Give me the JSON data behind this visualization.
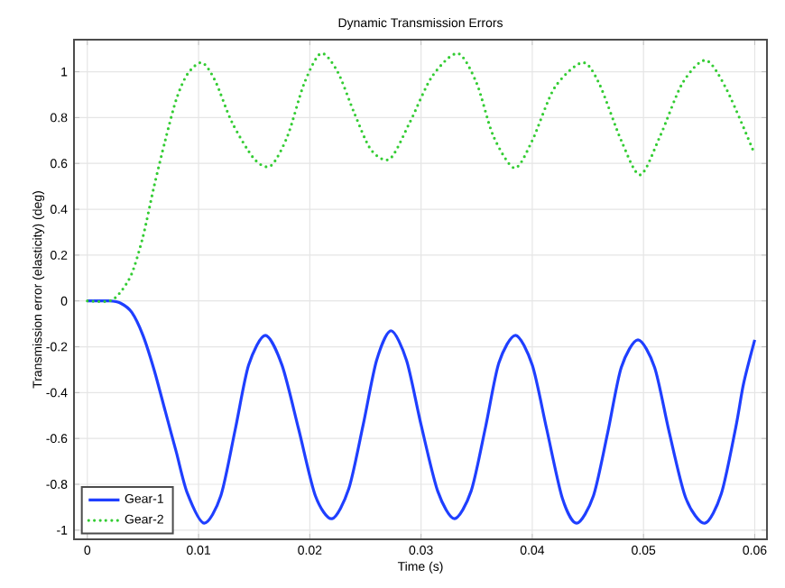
{
  "chart_data": {
    "type": "line",
    "title": "Dynamic Transmission Errors",
    "xlabel": "Time (s)",
    "ylabel": "Transmission error (elasticity) (deg)",
    "xlim": [
      -0.0012,
      0.0611
    ],
    "ylim": [
      -1.04,
      1.14
    ],
    "xticks": [
      0,
      0.01,
      0.02,
      0.03,
      0.04,
      0.05,
      0.06
    ],
    "yticks": [
      -1,
      -0.8,
      -0.6,
      -0.4,
      -0.2,
      0,
      0.2,
      0.4,
      0.6,
      0.8,
      1
    ],
    "grid": true,
    "legend": "bottom left",
    "marker": "none",
    "series": [
      {
        "name": "Gear-1",
        "color": "#1f3fff",
        "line_style": "solid",
        "x": [
          0,
          0.002,
          0.003,
          0.004,
          0.005,
          0.006,
          0.007,
          0.008,
          0.009,
          0.0105,
          0.012,
          0.0133,
          0.0145,
          0.016,
          0.0175,
          0.019,
          0.0205,
          0.022,
          0.0235,
          0.0248,
          0.026,
          0.0273,
          0.0287,
          0.03,
          0.0315,
          0.033,
          0.0345,
          0.0358,
          0.037,
          0.0385,
          0.04,
          0.0413,
          0.0427,
          0.044,
          0.0455,
          0.0468,
          0.048,
          0.0495,
          0.051,
          0.0523,
          0.0538,
          0.0555,
          0.057,
          0.0583,
          0.059,
          0.06
        ],
        "values": [
          0,
          0,
          -0.01,
          -0.05,
          -0.15,
          -0.3,
          -0.48,
          -0.66,
          -0.84,
          -0.97,
          -0.85,
          -0.56,
          -0.28,
          -0.15,
          -0.28,
          -0.56,
          -0.85,
          -0.95,
          -0.82,
          -0.54,
          -0.26,
          -0.13,
          -0.26,
          -0.54,
          -0.83,
          -0.95,
          -0.83,
          -0.55,
          -0.27,
          -0.15,
          -0.28,
          -0.56,
          -0.86,
          -0.97,
          -0.85,
          -0.57,
          -0.29,
          -0.17,
          -0.29,
          -0.57,
          -0.86,
          -0.97,
          -0.84,
          -0.55,
          -0.36,
          -0.17
        ]
      },
      {
        "name": "Gear-2",
        "color": "#33cc33",
        "line_style": "dotted",
        "x": [
          0,
          0.002,
          0.003,
          0.004,
          0.005,
          0.006,
          0.007,
          0.008,
          0.009,
          0.0103,
          0.0115,
          0.013,
          0.015,
          0.0165,
          0.018,
          0.0195,
          0.021,
          0.0225,
          0.024,
          0.0255,
          0.0272,
          0.029,
          0.031,
          0.0333,
          0.035,
          0.0365,
          0.0384,
          0.04,
          0.042,
          0.0445,
          0.046,
          0.048,
          0.0497,
          0.0515,
          0.0535,
          0.0556,
          0.0575,
          0.06
        ],
        "values": [
          0,
          0,
          0.04,
          0.12,
          0.28,
          0.5,
          0.7,
          0.88,
          0.99,
          1.04,
          0.96,
          0.78,
          0.62,
          0.59,
          0.72,
          0.95,
          1.08,
          1.0,
          0.82,
          0.66,
          0.62,
          0.78,
          0.98,
          1.08,
          0.95,
          0.72,
          0.58,
          0.7,
          0.93,
          1.04,
          0.95,
          0.7,
          0.55,
          0.72,
          0.95,
          1.05,
          0.92,
          0.64
        ]
      }
    ]
  }
}
